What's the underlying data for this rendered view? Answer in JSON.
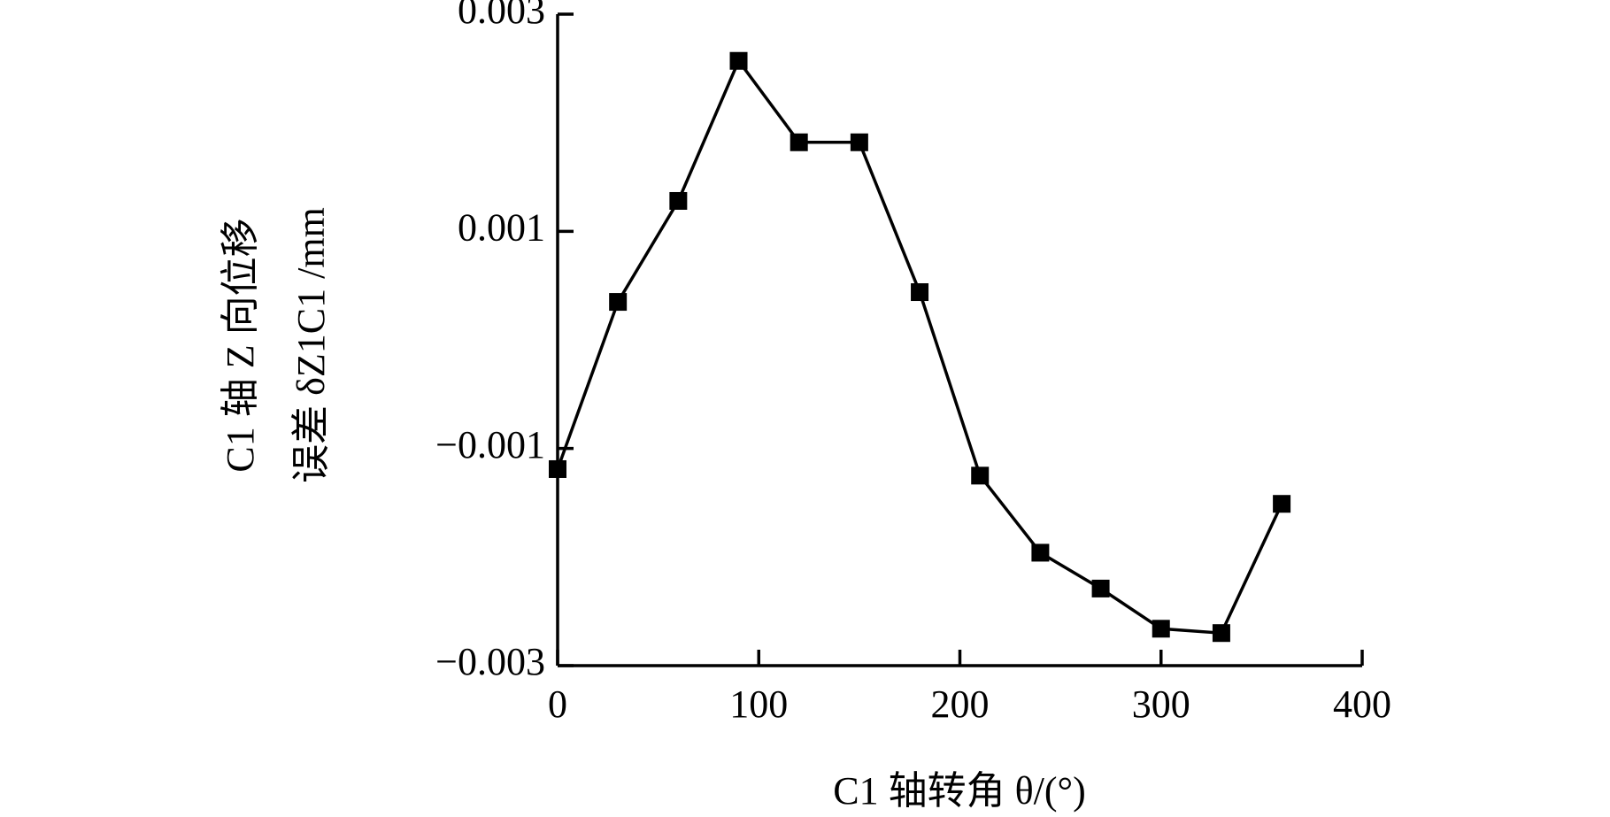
{
  "chart_data": {
    "type": "line",
    "xlabel": "C1 轴转角 θ/(°)",
    "ylabel": [
      "C1 轴 Z 向位移",
      "误差 δZ1C1 /mm"
    ],
    "x": [
      0,
      30,
      60,
      90,
      120,
      150,
      180,
      210,
      240,
      270,
      300,
      330,
      360
    ],
    "series": [
      {
        "color": "#000000",
        "values": [
          -0.00119,
          0.00035,
          0.00128,
          0.00257,
          0.00182,
          0.00182,
          0.00044,
          -0.00125,
          -0.00196,
          -0.00229,
          -0.00266,
          -0.0027,
          -0.00151
        ]
      }
    ],
    "xlim": [
      0,
      400
    ],
    "xticks": [
      0,
      100,
      200,
      300,
      400
    ],
    "ylim": [
      -0.003,
      0.003
    ],
    "yticks": [
      {
        "value": -0.003,
        "label": "−0.003"
      },
      {
        "value": -0.001,
        "label": "−0.001"
      },
      0.001,
      0.003
    ],
    "grid": false
  }
}
